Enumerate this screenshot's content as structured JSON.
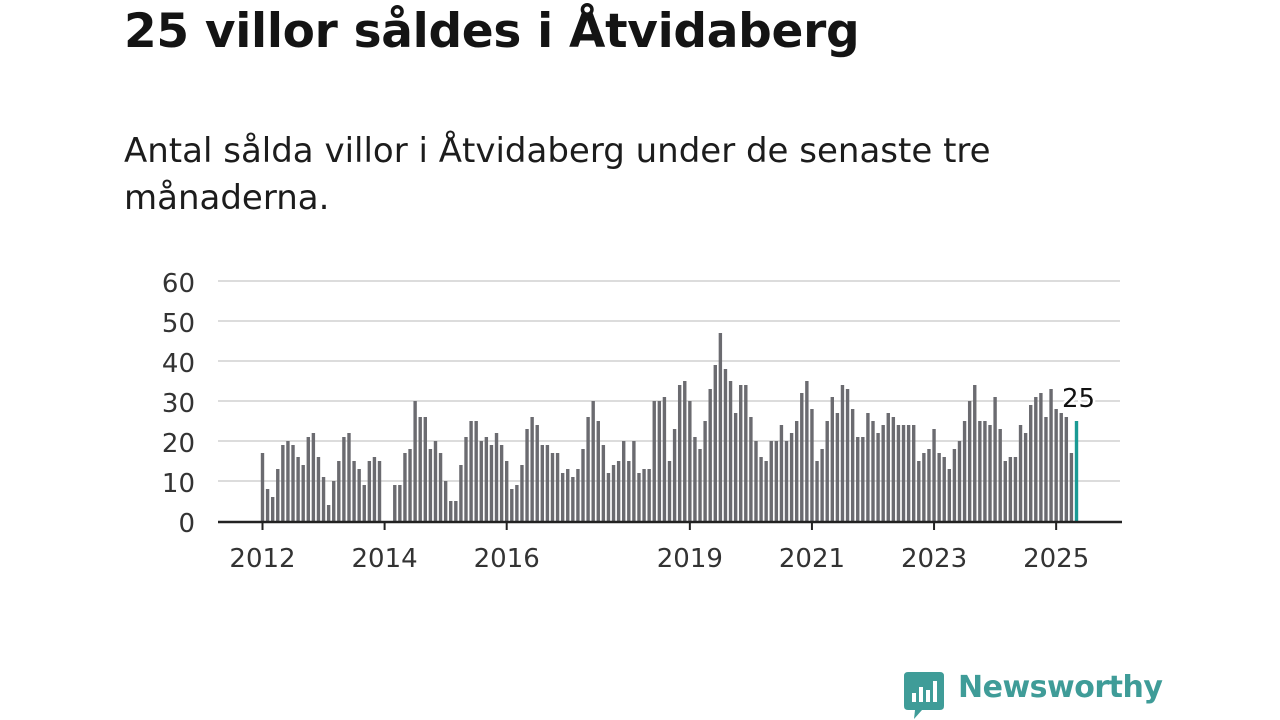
{
  "header": {
    "title": "25 villor såldes i Åtvidaberg",
    "subtitle": "Antal sålda villor i Åtvidaberg under de senaste tre månaderna."
  },
  "brand": {
    "name": "Newsworthy",
    "icon": "newsworthy-logo-icon",
    "color": "#3f9c98"
  },
  "chart_data": {
    "type": "bar",
    "title": "",
    "xlabel": "",
    "ylabel": "",
    "ylim": [
      0,
      60
    ],
    "y_ticks": [
      0,
      10,
      20,
      30,
      40,
      50,
      60
    ],
    "x_tick_labels": [
      {
        "label": "2012",
        "year": 2012
      },
      {
        "label": "2014",
        "year": 2014
      },
      {
        "label": "2016",
        "year": 2016
      },
      {
        "label": "2019",
        "year": 2019
      },
      {
        "label": "2021",
        "year": 2021
      },
      {
        "label": "2023",
        "year": 2023
      },
      {
        "label": "2025",
        "year": 2025
      }
    ],
    "grid": true,
    "bar_color": "#6b6b70",
    "highlight_color": "#1a9a94",
    "highlight_label": "25",
    "series": [
      {
        "values": [
          17,
          8,
          6,
          13,
          19,
          20,
          19,
          16,
          14,
          21,
          22,
          16,
          11,
          4,
          10,
          15,
          21,
          22,
          15,
          13,
          9,
          15,
          16,
          15,
          0,
          0,
          9,
          9,
          17,
          18,
          30,
          26,
          26,
          18,
          20,
          17,
          10,
          5,
          5,
          14,
          21,
          25,
          25,
          20,
          21,
          19,
          22,
          19,
          15,
          8,
          9,
          14,
          23,
          26,
          24,
          19,
          19,
          17,
          17,
          12,
          13,
          11,
          13,
          18,
          26,
          30,
          25,
          19,
          12,
          14,
          15,
          20,
          15,
          20,
          12,
          13,
          13,
          30,
          30,
          31,
          15,
          23,
          34,
          35,
          30,
          21,
          18,
          25,
          33,
          39,
          47,
          38,
          35,
          27,
          34,
          34,
          26,
          20,
          16,
          15,
          20,
          20,
          24,
          20,
          22,
          25,
          32,
          35,
          28,
          15,
          18,
          25,
          31,
          27,
          34,
          33,
          28,
          21,
          21,
          27,
          25,
          22,
          24,
          27,
          26,
          24,
          24,
          24,
          24,
          15,
          17,
          18,
          23,
          17,
          16,
          13,
          18,
          20,
          25,
          30,
          34,
          25,
          25,
          24,
          31,
          23,
          15,
          16,
          16,
          24,
          22,
          29,
          31,
          32,
          26,
          33,
          28,
          27,
          26,
          17,
          25
        ]
      }
    ]
  }
}
